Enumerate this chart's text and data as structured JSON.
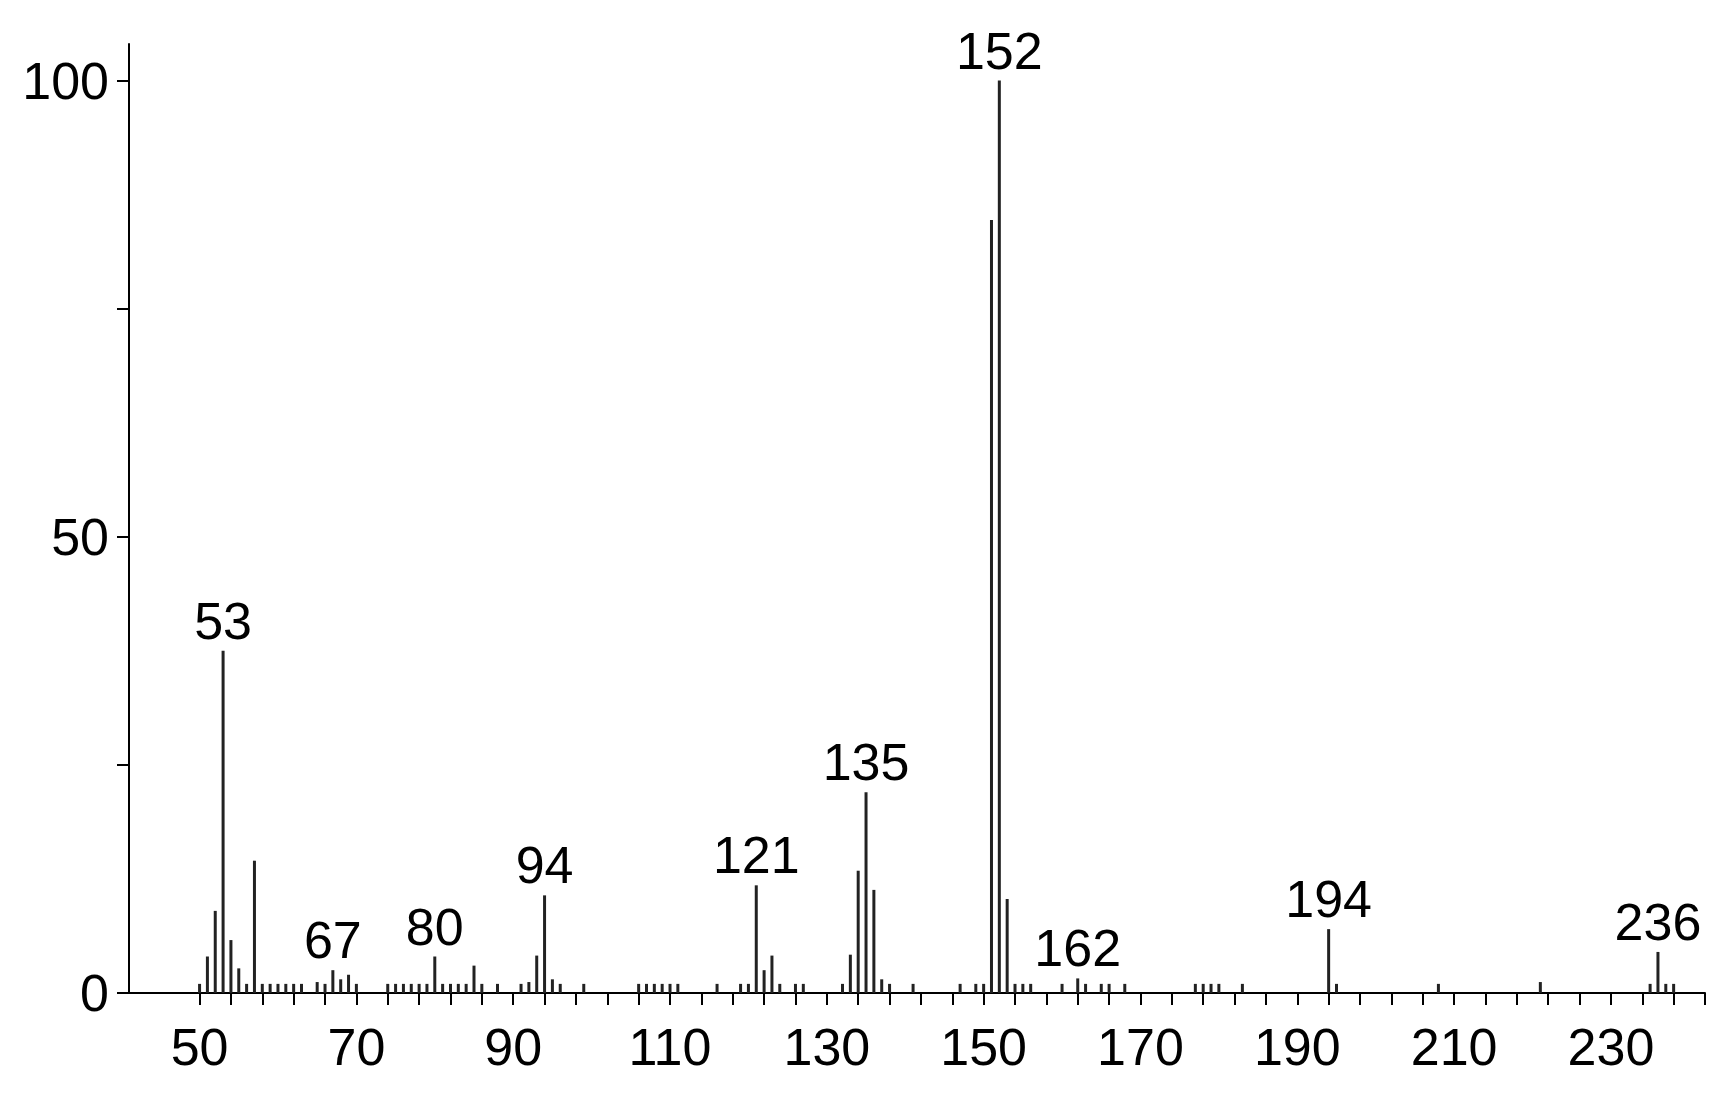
{
  "chart_data": {
    "type": "bar",
    "color": "#222222",
    "x": [
      50,
      51,
      52,
      53,
      54,
      55,
      56,
      57,
      58,
      59,
      60,
      61,
      62,
      63,
      65,
      66,
      67,
      68,
      69,
      70,
      74,
      75,
      76,
      77,
      78,
      79,
      80,
      81,
      82,
      83,
      84,
      85,
      86,
      88,
      91,
      92,
      93,
      94,
      95,
      96,
      99,
      106,
      107,
      108,
      109,
      110,
      111,
      116,
      119,
      120,
      121,
      122,
      123,
      124,
      126,
      127,
      132,
      133,
      134,
      135,
      136,
      137,
      138,
      141,
      147,
      149,
      150,
      151,
      152,
      153,
      154,
      155,
      156,
      160,
      162,
      163,
      165,
      166,
      168,
      177,
      178,
      179,
      180,
      183,
      194,
      195,
      208,
      221,
      235,
      236,
      237,
      238
    ],
    "values": [
      1,
      4,
      9,
      37.5,
      5.8,
      2.7,
      1,
      14.5,
      1,
      1,
      1,
      1,
      1,
      1,
      1.2,
      1,
      2.5,
      1.5,
      2,
      1,
      1,
      1,
      1,
      1,
      1,
      1,
      4,
      1,
      1,
      1,
      1,
      3,
      1,
      1,
      1,
      1.2,
      4.1,
      10.7,
      1.5,
      1,
      1,
      1,
      1,
      1,
      1,
      1,
      1,
      1,
      1,
      1,
      11.8,
      2.5,
      4.1,
      1,
      1,
      1,
      1,
      4.2,
      13.4,
      22,
      11.3,
      1.5,
      1,
      1,
      1,
      1,
      1,
      84.7,
      100,
      10.3,
      1,
      1,
      1,
      1,
      1.6,
      1,
      1,
      1,
      1,
      1,
      1,
      1,
      1,
      1,
      7,
      1,
      1,
      1.2,
      1,
      4.5,
      1,
      1
    ],
    "annotations": [
      {
        "text": "53",
        "x": 53,
        "y": 37.5
      },
      {
        "text": "67",
        "x": 67,
        "y": 2.5
      },
      {
        "text": "80",
        "x": 80,
        "y": 4
      },
      {
        "text": "94",
        "x": 94,
        "y": 10.7
      },
      {
        "text": "121",
        "x": 121,
        "y": 11.8
      },
      {
        "text": "135",
        "x": 135,
        "y": 22
      },
      {
        "text": "152",
        "x": 152,
        "y": 100
      },
      {
        "text": "162",
        "x": 162,
        "y": 1.6
      },
      {
        "text": "194",
        "x": 194,
        "y": 7
      },
      {
        "text": "236",
        "x": 236,
        "y": 4.5
      }
    ],
    "xlim": [
      41,
      242
    ],
    "ylim": [
      0,
      104
    ],
    "xticks": [
      50,
      {
        "value": 54,
        "label": null
      },
      {
        "value": 58,
        "label": null
      },
      {
        "value": 62,
        "label": null
      },
      {
        "value": 66,
        "label": null
      },
      70,
      {
        "value": 74,
        "label": null
      },
      {
        "value": 78,
        "label": null
      },
      {
        "value": 82,
        "label": null
      },
      {
        "value": 86,
        "label": null
      },
      90,
      {
        "value": 94,
        "label": null
      },
      {
        "value": 98,
        "label": null
      },
      {
        "value": 102,
        "label": null
      },
      {
        "value": 106,
        "label": null
      },
      110,
      {
        "value": 114,
        "label": null
      },
      {
        "value": 118,
        "label": null
      },
      {
        "value": 122,
        "label": null
      },
      {
        "value": 126,
        "label": null
      },
      130,
      {
        "value": 134,
        "label": null
      },
      {
        "value": 138,
        "label": null
      },
      {
        "value": 142,
        "label": null
      },
      {
        "value": 146,
        "label": null
      },
      150,
      {
        "value": 154,
        "label": null
      },
      {
        "value": 158,
        "label": null
      },
      {
        "value": 162,
        "label": null
      },
      {
        "value": 166,
        "label": null
      },
      170,
      {
        "value": 174,
        "label": null
      },
      {
        "value": 178,
        "label": null
      },
      {
        "value": 182,
        "label": null
      },
      {
        "value": 186,
        "label": null
      },
      190,
      {
        "value": 194,
        "label": null
      },
      {
        "value": 198,
        "label": null
      },
      {
        "value": 202,
        "label": null
      },
      {
        "value": 206,
        "label": null
      },
      210,
      {
        "value": 214,
        "label": null
      },
      {
        "value": 218,
        "label": null
      },
      {
        "value": 222,
        "label": null
      },
      {
        "value": 226,
        "label": null
      },
      230,
      {
        "value": 234,
        "label": null
      },
      {
        "value": 238,
        "label": null
      },
      {
        "value": 242,
        "label": null
      }
    ],
    "yticks": [
      0,
      {
        "value": 25,
        "label": null
      },
      50,
      {
        "value": 75,
        "label": null
      },
      100
    ]
  }
}
